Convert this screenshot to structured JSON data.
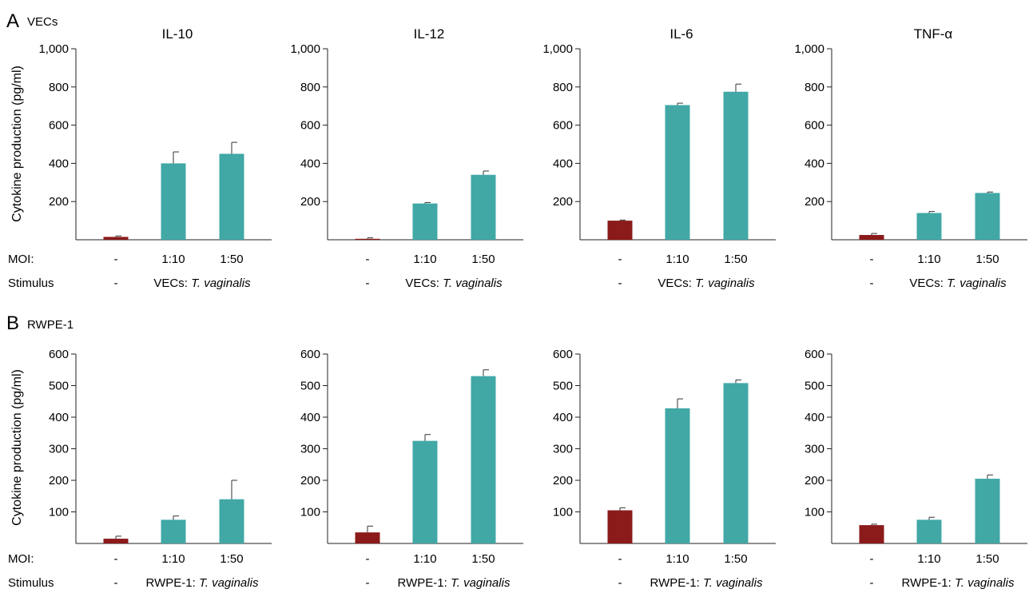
{
  "figure": {
    "sections": [
      {
        "letter": "A",
        "label": "VECs",
        "ylabel": "Cytokine production (pg/ml)",
        "row_labels": [
          "MOI:",
          "Stimulus"
        ]
      },
      {
        "letter": "B",
        "label": "RWPE-1",
        "ylabel": "Cytokine production (pg/ml)",
        "row_labels": [
          "MOI:",
          "Stimulus"
        ]
      }
    ]
  },
  "chart_data": [
    {
      "type": "bar",
      "section": "A",
      "title": "IL-10",
      "ylim": [
        0,
        1000
      ],
      "yticks": [
        "200",
        "400",
        "600",
        "800",
        "1,000"
      ],
      "categories": [
        "-",
        "1:10",
        "1:50"
      ],
      "values": [
        15,
        400,
        450
      ],
      "errors": [
        5,
        60,
        60
      ],
      "moi": [
        "-",
        "1:10",
        "1:50"
      ],
      "stimulus_none": "-",
      "stimulus_prefix": "VECs: ",
      "stimulus_italic": "T. vaginalis",
      "colors": [
        "#8b1a1a",
        "#41a8a6",
        "#41a8a6"
      ]
    },
    {
      "type": "bar",
      "section": "A",
      "title": "IL-12",
      "ylim": [
        0,
        1000
      ],
      "yticks": [
        "200",
        "400",
        "600",
        "800",
        "1,000"
      ],
      "categories": [
        "-",
        "1:10",
        "1:50"
      ],
      "values": [
        5,
        190,
        340
      ],
      "errors": [
        5,
        5,
        20
      ],
      "moi": [
        "-",
        "1:10",
        "1:50"
      ],
      "stimulus_none": "-",
      "stimulus_prefix": "VECs: ",
      "stimulus_italic": "T. vaginalis",
      "colors": [
        "#8b1a1a",
        "#41a8a6",
        "#41a8a6"
      ]
    },
    {
      "type": "bar",
      "section": "A",
      "title": "IL-6",
      "ylim": [
        0,
        1000
      ],
      "yticks": [
        "200",
        "400",
        "600",
        "800",
        "1,000"
      ],
      "categories": [
        "-",
        "1:10",
        "1:50"
      ],
      "values": [
        100,
        705,
        775
      ],
      "errors": [
        3,
        10,
        40
      ],
      "moi": [
        "-",
        "1:10",
        "1:50"
      ],
      "stimulus_none": "-",
      "stimulus_prefix": "VECs: ",
      "stimulus_italic": "T. vaginalis",
      "colors": [
        "#8b1a1a",
        "#41a8a6",
        "#41a8a6"
      ]
    },
    {
      "type": "bar",
      "section": "A",
      "title": "TNF-α",
      "ylim": [
        0,
        1000
      ],
      "yticks": [
        "200",
        "400",
        "600",
        "800",
        "1,000"
      ],
      "categories": [
        "-",
        "1:10",
        "1:50"
      ],
      "values": [
        25,
        140,
        245
      ],
      "errors": [
        8,
        8,
        5
      ],
      "moi": [
        "-",
        "1:10",
        "1:50"
      ],
      "stimulus_none": "-",
      "stimulus_prefix": "VECs: ",
      "stimulus_italic": "T. vaginalis",
      "colors": [
        "#8b1a1a",
        "#41a8a6",
        "#41a8a6"
      ]
    },
    {
      "type": "bar",
      "section": "B",
      "title": "",
      "ylim": [
        0,
        600
      ],
      "yticks": [
        "100",
        "200",
        "300",
        "400",
        "500",
        "600"
      ],
      "categories": [
        "-",
        "1:10",
        "1:50"
      ],
      "values": [
        15,
        75,
        140
      ],
      "errors": [
        8,
        12,
        60
      ],
      "moi": [
        "-",
        "1:10",
        "1:50"
      ],
      "stimulus_none": "-",
      "stimulus_prefix": "RWPE-1: ",
      "stimulus_italic": "T. vaginalis",
      "colors": [
        "#8b1a1a",
        "#41a8a6",
        "#41a8a6"
      ]
    },
    {
      "type": "bar",
      "section": "B",
      "title": "",
      "ylim": [
        0,
        600
      ],
      "yticks": [
        "100",
        "200",
        "300",
        "400",
        "500",
        "600"
      ],
      "categories": [
        "-",
        "1:10",
        "1:50"
      ],
      "values": [
        35,
        325,
        530
      ],
      "errors": [
        20,
        20,
        20
      ],
      "moi": [
        "-",
        "1:10",
        "1:50"
      ],
      "stimulus_none": "-",
      "stimulus_prefix": "RWPE-1: ",
      "stimulus_italic": "T. vaginalis",
      "colors": [
        "#8b1a1a",
        "#41a8a6",
        "#41a8a6"
      ]
    },
    {
      "type": "bar",
      "section": "B",
      "title": "",
      "ylim": [
        0,
        600
      ],
      "yticks": [
        "100",
        "200",
        "300",
        "400",
        "500",
        "600"
      ],
      "categories": [
        "-",
        "1:10",
        "1:50"
      ],
      "values": [
        105,
        428,
        508
      ],
      "errors": [
        8,
        30,
        10
      ],
      "moi": [
        "-",
        "1:10",
        "1:50"
      ],
      "stimulus_none": "-",
      "stimulus_prefix": "RWPE-1: ",
      "stimulus_italic": "T. vaginalis",
      "colors": [
        "#8b1a1a",
        "#41a8a6",
        "#41a8a6"
      ]
    },
    {
      "type": "bar",
      "section": "B",
      "title": "",
      "ylim": [
        0,
        600
      ],
      "yticks": [
        "100",
        "200",
        "300",
        "400",
        "500",
        "600"
      ],
      "categories": [
        "-",
        "1:10",
        "1:50"
      ],
      "values": [
        58,
        75,
        205
      ],
      "errors": [
        3,
        8,
        12
      ],
      "moi": [
        "-",
        "1:10",
        "1:50"
      ],
      "stimulus_none": "-",
      "stimulus_prefix": "RWPE-1: ",
      "stimulus_italic": "T. vaginalis",
      "colors": [
        "#8b1a1a",
        "#41a8a6",
        "#41a8a6"
      ]
    }
  ]
}
